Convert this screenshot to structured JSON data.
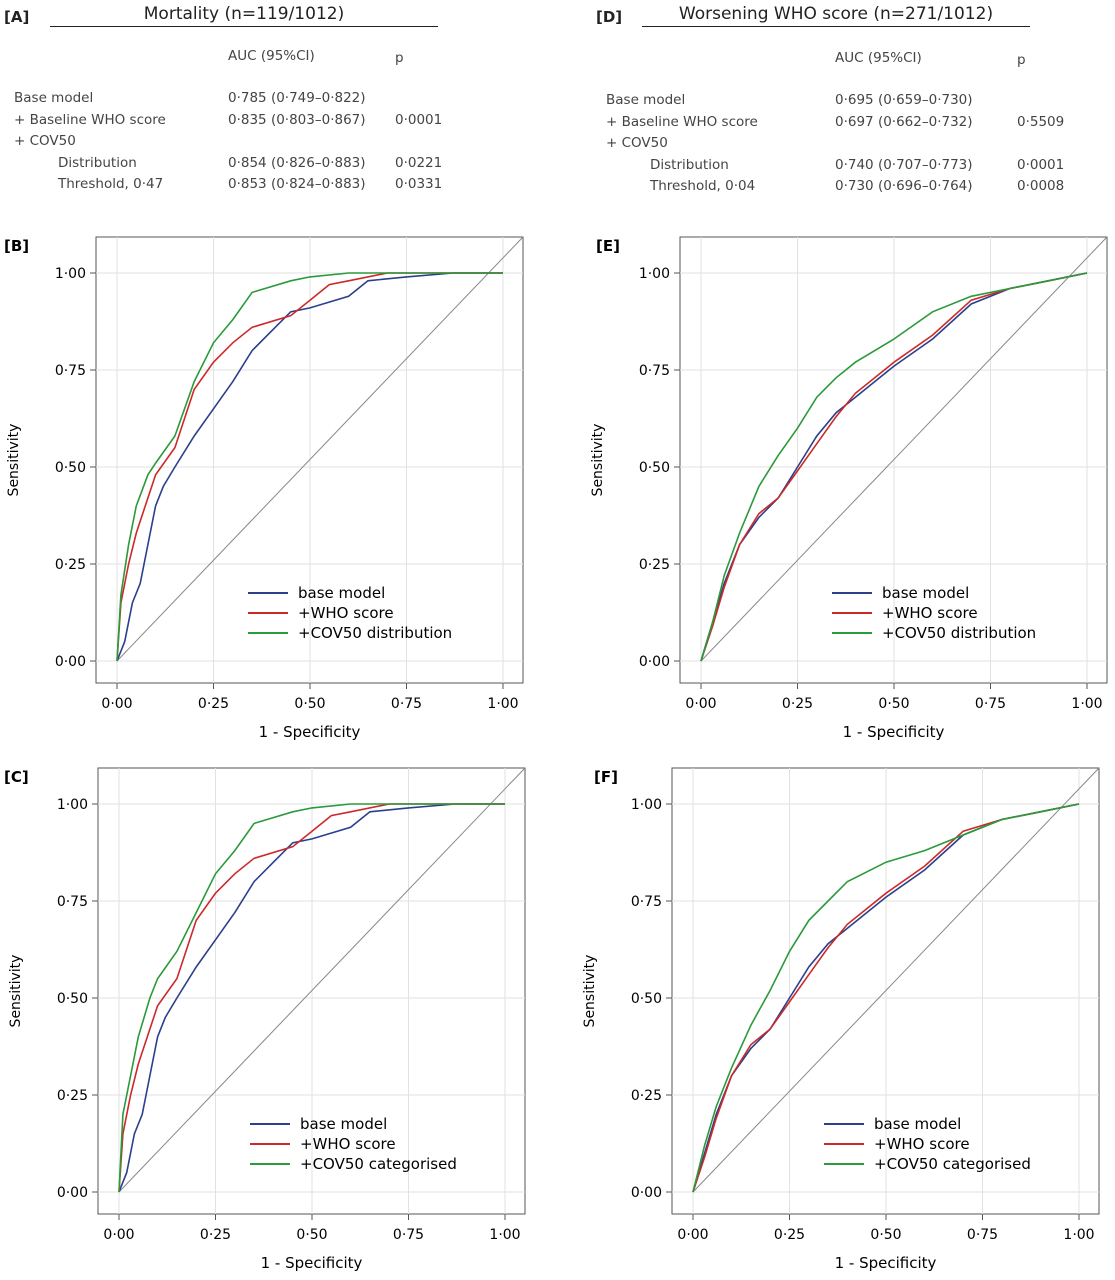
{
  "tables": [
    {
      "label": "[A]",
      "title": "Mortality (n=119/1012)",
      "col_auc": "AUC (95%CI)",
      "col_p": "p",
      "rows": [
        {
          "name": "Base model",
          "auc": "0·785 (0·749–0·822)",
          "p": ""
        },
        {
          "name": "+ Baseline WHO score",
          "auc": "0·835 (0·803–0·867)",
          "p": "0·0001"
        },
        {
          "name": "+ COV50",
          "auc": "",
          "p": ""
        },
        {
          "name": "Distribution",
          "auc": "0·854 (0·826–0·883)",
          "p": "0·0221"
        },
        {
          "name": "Threshold, 0·47",
          "auc": "0·853 (0·824–0·883)",
          "p": "0·0331"
        }
      ]
    },
    {
      "label": "[D]",
      "title": "Worsening WHO score (n=271/1012)",
      "col_auc": "AUC (95%CI)",
      "col_p": "p",
      "rows": [
        {
          "name": "Base model",
          "auc": "0·695 (0·659–0·730)",
          "p": ""
        },
        {
          "name": "+ Baseline WHO score",
          "auc": "0·697 (0·662–0·732)",
          "p": "0·5509"
        },
        {
          "name": "+ COV50",
          "auc": "",
          "p": ""
        },
        {
          "name": "Distribution",
          "auc": "0·740 (0·707–0·773)",
          "p": "0·0001"
        },
        {
          "name": "Threshold, 0·04",
          "auc": "0·730 (0·696–0·764)",
          "p": "0·0008"
        }
      ]
    }
  ],
  "chart_data": [
    {
      "type": "line",
      "panel": "[B]",
      "xlabel": "1 - Specificity",
      "ylabel": "Sensitivity",
      "xlim": [
        0,
        1
      ],
      "ylim": [
        0,
        1
      ],
      "grid": true,
      "legend": "bottom-right",
      "ticks": [
        "0·00",
        "0·25",
        "0·50",
        "0·75",
        "1·00"
      ],
      "reference_line": true,
      "series": [
        {
          "name": "base model",
          "color": "#2b3f8c",
          "points": [
            [
              0,
              0
            ],
            [
              0.02,
              0.05
            ],
            [
              0.04,
              0.15
            ],
            [
              0.06,
              0.2
            ],
            [
              0.08,
              0.3
            ],
            [
              0.1,
              0.4
            ],
            [
              0.12,
              0.45
            ],
            [
              0.15,
              0.5
            ],
            [
              0.2,
              0.58
            ],
            [
              0.25,
              0.65
            ],
            [
              0.3,
              0.72
            ],
            [
              0.35,
              0.8
            ],
            [
              0.4,
              0.85
            ],
            [
              0.45,
              0.9
            ],
            [
              0.5,
              0.91
            ],
            [
              0.6,
              0.94
            ],
            [
              0.65,
              0.98
            ],
            [
              0.75,
              0.99
            ],
            [
              0.87,
              1
            ],
            [
              1,
              1
            ]
          ]
        },
        {
          "name": "+WHO score",
          "color": "#cc2a2a",
          "points": [
            [
              0,
              0
            ],
            [
              0.01,
              0.15
            ],
            [
              0.03,
              0.25
            ],
            [
              0.05,
              0.33
            ],
            [
              0.08,
              0.42
            ],
            [
              0.1,
              0.48
            ],
            [
              0.15,
              0.55
            ],
            [
              0.2,
              0.7
            ],
            [
              0.25,
              0.77
            ],
            [
              0.3,
              0.82
            ],
            [
              0.35,
              0.86
            ],
            [
              0.45,
              0.89
            ],
            [
              0.5,
              0.93
            ],
            [
              0.55,
              0.97
            ],
            [
              0.6,
              0.98
            ],
            [
              0.7,
              1
            ],
            [
              1,
              1
            ]
          ]
        },
        {
          "name": "+COV50 distribution",
          "color": "#2a9a3a",
          "points": [
            [
              0,
              0
            ],
            [
              0.01,
              0.17
            ],
            [
              0.03,
              0.3
            ],
            [
              0.05,
              0.4
            ],
            [
              0.08,
              0.48
            ],
            [
              0.1,
              0.51
            ],
            [
              0.15,
              0.58
            ],
            [
              0.2,
              0.72
            ],
            [
              0.25,
              0.82
            ],
            [
              0.3,
              0.88
            ],
            [
              0.35,
              0.95
            ],
            [
              0.45,
              0.98
            ],
            [
              0.5,
              0.99
            ],
            [
              0.6,
              1
            ],
            [
              1,
              1
            ]
          ]
        }
      ]
    },
    {
      "type": "line",
      "panel": "[E]",
      "xlabel": "1 - Specificity",
      "ylabel": "Sensitivity",
      "xlim": [
        0,
        1
      ],
      "ylim": [
        0,
        1
      ],
      "grid": true,
      "legend": "bottom-right",
      "ticks": [
        "0·00",
        "0·25",
        "0·50",
        "0·75",
        "1·00"
      ],
      "reference_line": true,
      "series": [
        {
          "name": "base model",
          "color": "#2b3f8c",
          "points": [
            [
              0,
              0
            ],
            [
              0.03,
              0.1
            ],
            [
              0.06,
              0.2
            ],
            [
              0.1,
              0.3
            ],
            [
              0.15,
              0.37
            ],
            [
              0.2,
              0.42
            ],
            [
              0.25,
              0.5
            ],
            [
              0.3,
              0.58
            ],
            [
              0.35,
              0.64
            ],
            [
              0.4,
              0.68
            ],
            [
              0.5,
              0.76
            ],
            [
              0.6,
              0.83
            ],
            [
              0.7,
              0.92
            ],
            [
              0.8,
              0.96
            ],
            [
              0.9,
              0.98
            ],
            [
              1,
              1
            ]
          ]
        },
        {
          "name": "+WHO score",
          "color": "#cc2a2a",
          "points": [
            [
              0,
              0
            ],
            [
              0.03,
              0.09
            ],
            [
              0.06,
              0.19
            ],
            [
              0.1,
              0.3
            ],
            [
              0.15,
              0.38
            ],
            [
              0.2,
              0.42
            ],
            [
              0.25,
              0.49
            ],
            [
              0.3,
              0.56
            ],
            [
              0.35,
              0.63
            ],
            [
              0.4,
              0.69
            ],
            [
              0.5,
              0.77
            ],
            [
              0.6,
              0.84
            ],
            [
              0.7,
              0.93
            ],
            [
              0.8,
              0.96
            ],
            [
              0.9,
              0.98
            ],
            [
              1,
              1
            ]
          ]
        },
        {
          "name": "+COV50 distribution",
          "color": "#2a9a3a",
          "points": [
            [
              0,
              0
            ],
            [
              0.03,
              0.1
            ],
            [
              0.06,
              0.22
            ],
            [
              0.1,
              0.33
            ],
            [
              0.15,
              0.45
            ],
            [
              0.2,
              0.53
            ],
            [
              0.25,
              0.6
            ],
            [
              0.3,
              0.68
            ],
            [
              0.35,
              0.73
            ],
            [
              0.4,
              0.77
            ],
            [
              0.5,
              0.83
            ],
            [
              0.6,
              0.9
            ],
            [
              0.7,
              0.94
            ],
            [
              0.8,
              0.96
            ],
            [
              0.9,
              0.98
            ],
            [
              1,
              1
            ]
          ]
        }
      ]
    },
    {
      "type": "line",
      "panel": "[C]",
      "xlabel": "1 - Specificity",
      "ylabel": "Sensitivity",
      "xlim": [
        0,
        1
      ],
      "ylim": [
        0,
        1
      ],
      "grid": true,
      "legend": "bottom-right",
      "ticks": [
        "0·00",
        "0·25",
        "0·50",
        "0·75",
        "1·00"
      ],
      "reference_line": true,
      "series": [
        {
          "name": "base model",
          "color": "#2b3f8c",
          "points": [
            [
              0,
              0
            ],
            [
              0.02,
              0.05
            ],
            [
              0.04,
              0.15
            ],
            [
              0.06,
              0.2
            ],
            [
              0.08,
              0.3
            ],
            [
              0.1,
              0.4
            ],
            [
              0.12,
              0.45
            ],
            [
              0.15,
              0.5
            ],
            [
              0.2,
              0.58
            ],
            [
              0.25,
              0.65
            ],
            [
              0.3,
              0.72
            ],
            [
              0.35,
              0.8
            ],
            [
              0.4,
              0.85
            ],
            [
              0.45,
              0.9
            ],
            [
              0.5,
              0.91
            ],
            [
              0.6,
              0.94
            ],
            [
              0.65,
              0.98
            ],
            [
              0.75,
              0.99
            ],
            [
              0.87,
              1
            ],
            [
              1,
              1
            ]
          ]
        },
        {
          "name": "+WHO score",
          "color": "#cc2a2a",
          "points": [
            [
              0,
              0
            ],
            [
              0.01,
              0.15
            ],
            [
              0.03,
              0.25
            ],
            [
              0.05,
              0.33
            ],
            [
              0.08,
              0.42
            ],
            [
              0.1,
              0.48
            ],
            [
              0.15,
              0.55
            ],
            [
              0.2,
              0.7
            ],
            [
              0.25,
              0.77
            ],
            [
              0.3,
              0.82
            ],
            [
              0.35,
              0.86
            ],
            [
              0.45,
              0.89
            ],
            [
              0.5,
              0.93
            ],
            [
              0.55,
              0.97
            ],
            [
              0.6,
              0.98
            ],
            [
              0.7,
              1
            ],
            [
              1,
              1
            ]
          ]
        },
        {
          "name": "+COV50 categorised",
          "color": "#2a9a3a",
          "points": [
            [
              0,
              0
            ],
            [
              0.01,
              0.2
            ],
            [
              0.03,
              0.3
            ],
            [
              0.05,
              0.4
            ],
            [
              0.08,
              0.5
            ],
            [
              0.1,
              0.55
            ],
            [
              0.15,
              0.62
            ],
            [
              0.2,
              0.72
            ],
            [
              0.25,
              0.82
            ],
            [
              0.3,
              0.88
            ],
            [
              0.35,
              0.95
            ],
            [
              0.45,
              0.98
            ],
            [
              0.5,
              0.99
            ],
            [
              0.6,
              1
            ],
            [
              1,
              1
            ]
          ]
        }
      ]
    },
    {
      "type": "line",
      "panel": "[F]",
      "xlabel": "1 - Specificity",
      "ylabel": "Sensitivity",
      "xlim": [
        0,
        1
      ],
      "ylim": [
        0,
        1
      ],
      "grid": true,
      "legend": "bottom-right",
      "ticks": [
        "0·00",
        "0·25",
        "0·50",
        "0·75",
        "1·00"
      ],
      "reference_line": true,
      "series": [
        {
          "name": "base model",
          "color": "#2b3f8c",
          "points": [
            [
              0,
              0
            ],
            [
              0.03,
              0.1
            ],
            [
              0.06,
              0.2
            ],
            [
              0.1,
              0.3
            ],
            [
              0.15,
              0.37
            ],
            [
              0.2,
              0.42
            ],
            [
              0.25,
              0.5
            ],
            [
              0.3,
              0.58
            ],
            [
              0.35,
              0.64
            ],
            [
              0.4,
              0.68
            ],
            [
              0.5,
              0.76
            ],
            [
              0.6,
              0.83
            ],
            [
              0.7,
              0.92
            ],
            [
              0.8,
              0.96
            ],
            [
              0.9,
              0.98
            ],
            [
              1,
              1
            ]
          ]
        },
        {
          "name": "+WHO score",
          "color": "#cc2a2a",
          "points": [
            [
              0,
              0
            ],
            [
              0.03,
              0.09
            ],
            [
              0.06,
              0.19
            ],
            [
              0.1,
              0.3
            ],
            [
              0.15,
              0.38
            ],
            [
              0.2,
              0.42
            ],
            [
              0.25,
              0.49
            ],
            [
              0.3,
              0.56
            ],
            [
              0.35,
              0.63
            ],
            [
              0.4,
              0.69
            ],
            [
              0.5,
              0.77
            ],
            [
              0.6,
              0.84
            ],
            [
              0.7,
              0.93
            ],
            [
              0.8,
              0.96
            ],
            [
              0.9,
              0.98
            ],
            [
              1,
              1
            ]
          ]
        },
        {
          "name": "+COV50 categorised",
          "color": "#2a9a3a",
          "points": [
            [
              0,
              0
            ],
            [
              0.03,
              0.12
            ],
            [
              0.06,
              0.22
            ],
            [
              0.1,
              0.32
            ],
            [
              0.15,
              0.43
            ],
            [
              0.2,
              0.52
            ],
            [
              0.25,
              0.62
            ],
            [
              0.3,
              0.7
            ],
            [
              0.35,
              0.75
            ],
            [
              0.4,
              0.8
            ],
            [
              0.5,
              0.85
            ],
            [
              0.6,
              0.88
            ],
            [
              0.7,
              0.92
            ],
            [
              0.8,
              0.96
            ],
            [
              0.9,
              0.98
            ],
            [
              1,
              1
            ]
          ]
        }
      ]
    }
  ]
}
